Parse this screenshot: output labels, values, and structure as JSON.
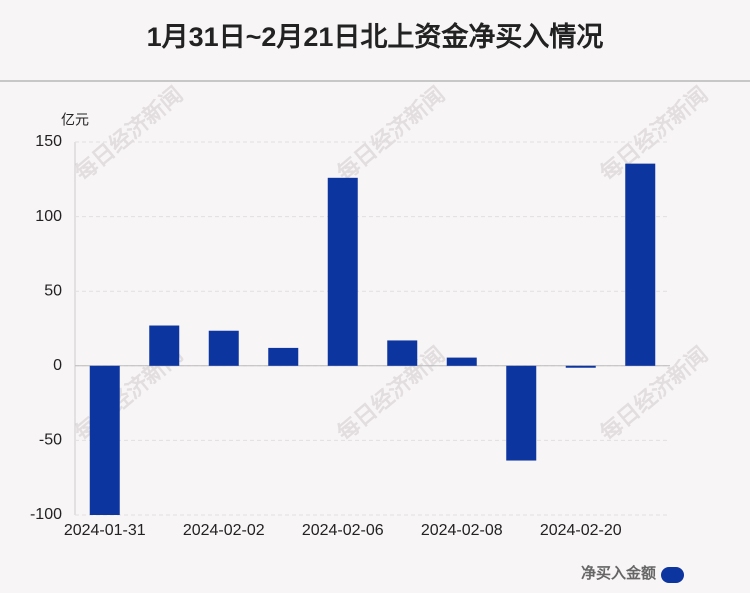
{
  "chart_data": {
    "type": "bar",
    "title": "1月31日~2月21日北上资金净买入情况",
    "y_axis_label": "亿元",
    "watermark": "每日经济新闻",
    "categories": [
      "2024-01-31",
      null,
      "2024-02-02",
      null,
      "2024-02-06",
      null,
      "2024-02-08",
      null,
      "2024-02-20",
      null
    ],
    "series": [
      {
        "name": "净买入金额",
        "color": "#0d35a0",
        "values": [
          -100,
          27,
          23.5,
          12,
          126,
          17,
          5.5,
          -63.5,
          -1.3,
          135.5
        ]
      }
    ],
    "ylim": [
      -100,
      150
    ],
    "yticks": [
      -100,
      -50,
      0,
      50,
      100,
      150
    ],
    "grid": true,
    "legend": "bottom-right"
  }
}
